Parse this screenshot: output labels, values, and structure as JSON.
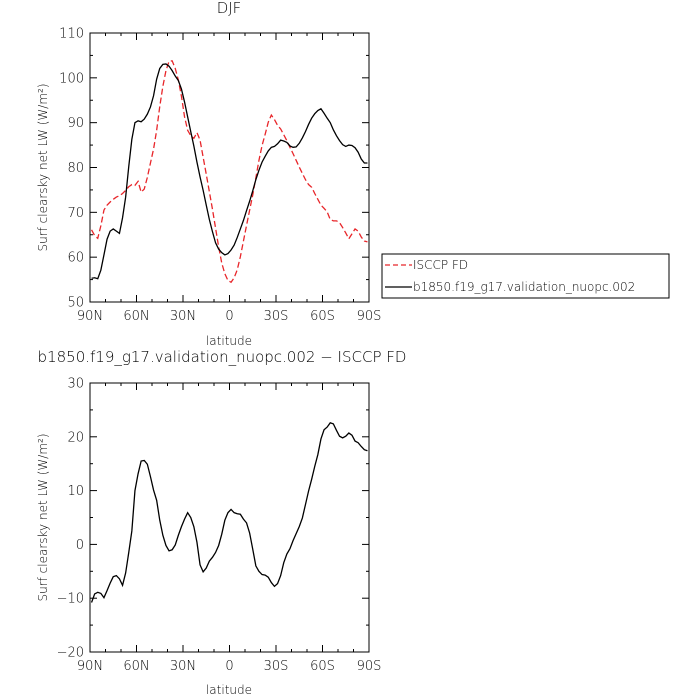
{
  "chart_data": [
    {
      "type": "line",
      "title": "DJF",
      "xlabel": "latitude",
      "ylabel": "Surf clearsky net LW (W/m²)",
      "xlim": [
        90,
        -90
      ],
      "ylim": [
        50,
        110
      ],
      "xticks": [
        90,
        60,
        30,
        0,
        -30,
        -60,
        -90
      ],
      "xtick_labels": [
        "90N",
        "60N",
        "30N",
        "0",
        "30S",
        "60S",
        "90S"
      ],
      "yticks": [
        50,
        60,
        70,
        80,
        90,
        100,
        110
      ],
      "ytick_labels": [
        "50",
        "60",
        "70",
        "80",
        "90",
        "100",
        "110"
      ],
      "legend_position": "right",
      "series": [
        {
          "name": "ISCCP FD",
          "color": "#e8262a",
          "dash": "dashed",
          "x": [
            89,
            87,
            85,
            83,
            81,
            79,
            77,
            75,
            73,
            71,
            69,
            67,
            65,
            63,
            61,
            59,
            57,
            55,
            53,
            51,
            49,
            47,
            45,
            43,
            41,
            39,
            37,
            35,
            33,
            31,
            29,
            27,
            25,
            23,
            21,
            19,
            17,
            15,
            13,
            11,
            9,
            7,
            5,
            3,
            1,
            -1,
            -3,
            -5,
            -7,
            -9,
            -11,
            -13,
            -15,
            -17,
            -19,
            -21,
            -23,
            -25,
            -27,
            -29,
            -31,
            -33,
            -35,
            -37,
            -39,
            -41,
            -43,
            -45,
            -47,
            -49,
            -51,
            -53,
            -55,
            -57,
            -59,
            -61,
            -63,
            -65,
            -67,
            -69,
            -71,
            -73,
            -75,
            -77,
            -79,
            -81,
            -83,
            -85,
            -87,
            -89
          ],
          "y": [
            66.1,
            64.8,
            64.2,
            67.0,
            70.5,
            71.6,
            72.3,
            72.9,
            73.4,
            73.7,
            74.2,
            74.9,
            75.7,
            76.2,
            76.0,
            76.9,
            74.5,
            75.2,
            77.8,
            81.0,
            84.1,
            88.3,
            93.6,
            98.1,
            101.6,
            103.7,
            103.8,
            102.1,
            99.5,
            95.9,
            91.3,
            88.3,
            87.1,
            86.5,
            87.8,
            86.1,
            82.3,
            78.5,
            74.6,
            70.7,
            66.5,
            62.3,
            58.7,
            56.3,
            54.8,
            54.4,
            55.4,
            57.2,
            60.1,
            63.6,
            67.1,
            70.5,
            73.9,
            77.7,
            81.6,
            84.9,
            87.4,
            90.1,
            91.7,
            90.7,
            89.4,
            88.6,
            87.3,
            86.0,
            84.5,
            83.1,
            81.6,
            80.1,
            78.7,
            77.3,
            76.2,
            75.6,
            74.2,
            72.9,
            71.6,
            70.9,
            70.1,
            68.4,
            68.1,
            68.1,
            67.7,
            66.6,
            65.4,
            64.1,
            65.2,
            66.3,
            65.8,
            64.5,
            63.6,
            63.4
          ]
        },
        {
          "name": "b1850.f19_g17.validation_nuopc.002",
          "color": "#000000",
          "dash": "solid",
          "x": [
            89,
            87,
            85,
            83,
            81,
            79,
            77,
            75,
            73,
            71,
            69,
            67,
            65,
            63,
            61,
            59,
            57,
            55,
            53,
            51,
            49,
            47,
            45,
            43,
            41,
            39,
            37,
            35,
            33,
            31,
            29,
            27,
            25,
            23,
            21,
            19,
            17,
            15,
            13,
            11,
            9,
            7,
            5,
            3,
            1,
            -1,
            -3,
            -5,
            -7,
            -9,
            -11,
            -13,
            -15,
            -17,
            -19,
            -21,
            -23,
            -25,
            -27,
            -29,
            -31,
            -33,
            -35,
            -37,
            -39,
            -41,
            -43,
            -45,
            -47,
            -49,
            -51,
            -53,
            -55,
            -57,
            -59,
            -61,
            -63,
            -65,
            -67,
            -69,
            -71,
            -73,
            -75,
            -77,
            -79,
            -81,
            -83,
            -85,
            -87,
            -89
          ],
          "y": [
            55.3,
            55.4,
            55.2,
            57.1,
            60.5,
            64.0,
            65.8,
            66.3,
            65.8,
            65.3,
            68.8,
            73.4,
            80.2,
            86.3,
            90.0,
            90.4,
            90.2,
            90.8,
            91.9,
            93.5,
            96.0,
            99.7,
            102.1,
            103.0,
            103.1,
            102.6,
            101.6,
            100.4,
            99.4,
            97.5,
            94.6,
            91.3,
            88.0,
            84.8,
            81.2,
            77.9,
            74.9,
            71.6,
            68.4,
            65.7,
            63.2,
            61.8,
            61.0,
            60.5,
            60.8,
            61.6,
            62.7,
            64.4,
            66.3,
            68.2,
            70.4,
            72.5,
            74.8,
            77.3,
            79.4,
            81.2,
            82.5,
            83.7,
            84.5,
            84.7,
            85.3,
            86.1,
            85.9,
            85.6,
            84.8,
            84.5,
            84.6,
            85.4,
            86.6,
            88.0,
            89.6,
            91.0,
            92.0,
            92.7,
            93.1,
            92.1,
            91.0,
            90.0,
            88.4,
            87.1,
            86.0,
            85.1,
            84.7,
            85.0,
            84.9,
            84.4,
            83.4,
            81.9,
            81.0,
            81.0
          ]
        }
      ]
    },
    {
      "type": "line",
      "title": "b1850.f19_g17.validation_nuopc.002 − ISCCP FD",
      "xlabel": "latitude",
      "ylabel": "Surf clearsky net LW (W/m²)",
      "xlim": [
        90,
        -90
      ],
      "ylim": [
        -20,
        30
      ],
      "xticks": [
        90,
        60,
        30,
        0,
        -30,
        -60,
        -90
      ],
      "xtick_labels": [
        "90N",
        "60N",
        "30N",
        "0",
        "30S",
        "60S",
        "90S"
      ],
      "yticks": [
        -20,
        -10,
        0,
        10,
        20,
        30
      ],
      "ytick_labels": [
        "−20",
        "−10",
        "0",
        "10",
        "20",
        "30"
      ],
      "series": [
        {
          "color": "#000000",
          "dash": "solid",
          "x": [
            89,
            87,
            85,
            83,
            81,
            79,
            77,
            75,
            73,
            71,
            69,
            67,
            65,
            63,
            61,
            59,
            57,
            55,
            53,
            51,
            49,
            47,
            45,
            43,
            41,
            39,
            37,
            35,
            33,
            31,
            29,
            27,
            25,
            23,
            21,
            19,
            17,
            15,
            13,
            11,
            9,
            7,
            5,
            3,
            1,
            -1,
            -3,
            -5,
            -7,
            -9,
            -11,
            -13,
            -15,
            -17,
            -19,
            -21,
            -23,
            -25,
            -27,
            -29,
            -31,
            -33,
            -35,
            -37,
            -39,
            -41,
            -43,
            -45,
            -47,
            -49,
            -51,
            -53,
            -55,
            -57,
            -59,
            -61,
            -63,
            -65,
            -67,
            -69,
            -71,
            -73,
            -75,
            -77,
            -79,
            -81,
            -83,
            -85,
            -87,
            -89
          ],
          "y": [
            -10.8,
            -9.2,
            -8.9,
            -9.1,
            -9.9,
            -8.6,
            -7.2,
            -6.0,
            -5.8,
            -6.4,
            -7.6,
            -5.3,
            -1.5,
            2.5,
            10.0,
            13.1,
            15.5,
            15.6,
            14.9,
            12.6,
            10.1,
            8.2,
            4.5,
            1.7,
            -0.2,
            -1.2,
            -1.0,
            -0.1,
            1.7,
            3.3,
            4.7,
            5.9,
            5.0,
            3.3,
            0.4,
            -3.8,
            -5.1,
            -4.4,
            -3.1,
            -2.4,
            -1.5,
            -0.2,
            1.9,
            4.5,
            5.9,
            6.5,
            5.9,
            5.7,
            5.6,
            4.7,
            4.0,
            2.1,
            -0.9,
            -4.0,
            -5.0,
            -5.6,
            -5.7,
            -6.1,
            -7.1,
            -7.8,
            -7.3,
            -5.8,
            -3.4,
            -1.8,
            -0.8,
            0.7,
            2.0,
            3.3,
            4.9,
            7.4,
            9.9,
            12.1,
            14.5,
            16.7,
            19.6,
            21.3,
            21.8,
            22.6,
            22.4,
            21.2,
            20.1,
            19.8,
            20.1,
            20.7,
            20.3,
            19.2,
            18.9,
            18.2,
            17.6,
            17.4
          ]
        }
      ]
    }
  ]
}
